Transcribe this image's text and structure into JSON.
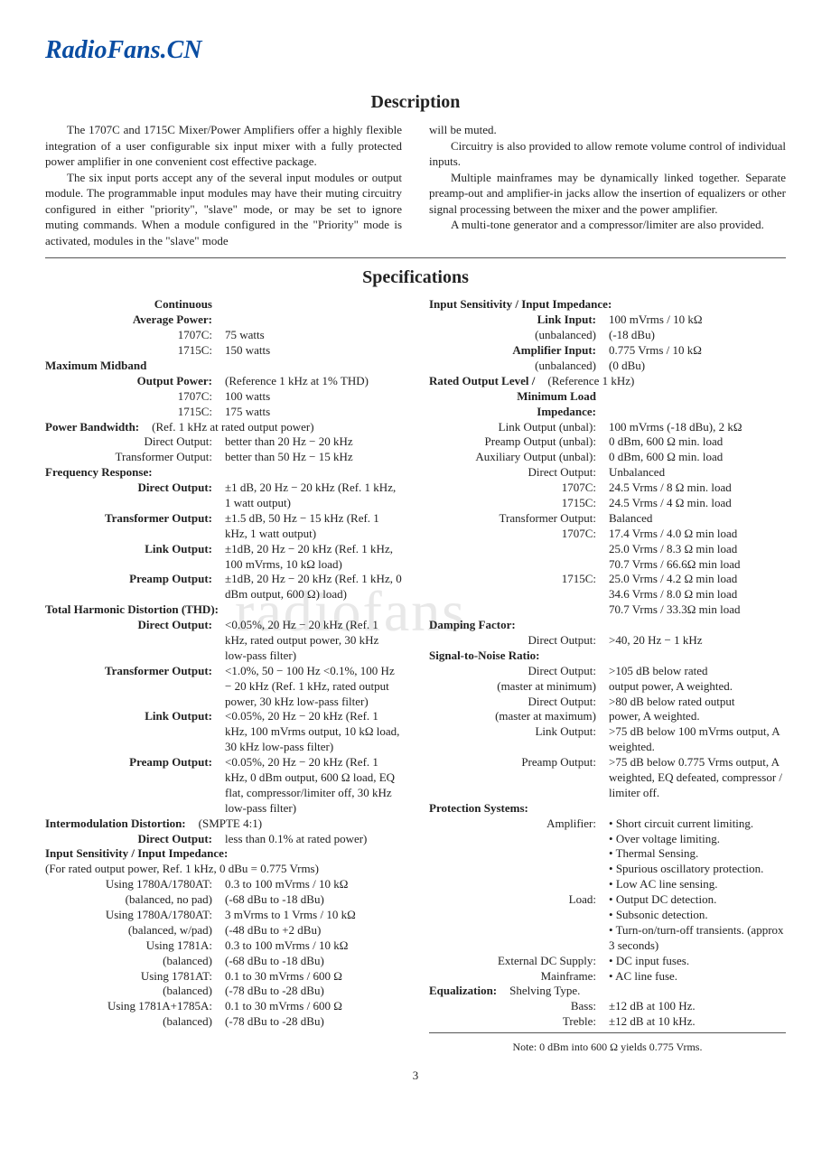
{
  "brand": "RadioFans.CN",
  "watermark": "radiofans",
  "desc_title": "Description",
  "desc_p1": "The 1707C and 1715C Mixer/Power Amplifiers offer a highly flexible integration of a user configurable six input mixer with a fully protected power amplifier in one convenient cost effective package.",
  "desc_p2": "The six input ports accept any of the several input modules or output module. The programmable input modules may have their muting circuitry configured in either \"priority\", \"slave\" mode, or may be set to ignore muting commands. When a module configured in the \"Priority\" mode is activated, modules in the \"slave\" mode",
  "desc_p3": "will be muted.",
  "desc_p4": "Circuitry is also provided to allow remote volume control of individual inputs.",
  "desc_p5": "Multiple mainframes may be dynamically linked together. Separate preamp-out and amplifier-in jacks allow the insertion of equalizers or other signal processing between the mixer and the power amplifier.",
  "desc_p6": "A multi-tone generator and a compressor/limiter are also provided.",
  "spec_title": "Specifications",
  "left": [
    {
      "l": "Continuous",
      "v": "",
      "b": "hdr"
    },
    {
      "l": "Average Power:",
      "v": "",
      "b": "bold"
    },
    {
      "l": "1707C:",
      "v": "75 watts"
    },
    {
      "l": "1715C:",
      "v": "150 watts"
    },
    {
      "l": "Maximum Midband",
      "v": "",
      "b": "hdr",
      "la": "left"
    },
    {
      "l": "Output Power:",
      "v": "(Reference 1 kHz at 1% THD)",
      "b": "bold"
    },
    {
      "l": "1707C:",
      "v": "100 watts"
    },
    {
      "l": "1715C:",
      "v": "175 watts"
    },
    {
      "l": "Power Bandwidth:",
      "v": "(Ref. 1 kHz at rated output power)",
      "b": "hdr",
      "la": "left"
    },
    {
      "l": "Direct Output:",
      "v": "better than 20 Hz − 20 kHz"
    },
    {
      "l": "Transformer Output:",
      "v": "better than 50 Hz − 15 kHz"
    },
    {
      "l": "Frequency Response:",
      "v": "",
      "b": "hdr",
      "la": "left"
    },
    {
      "l": "Direct Output:",
      "v": "±1 dB, 20 Hz − 20 kHz (Ref. 1 kHz, 1 watt output)",
      "b": "bold"
    },
    {
      "l": "Transformer Output:",
      "v": "±1.5 dB, 50 Hz − 15 kHz (Ref. 1 kHz, 1 watt output)",
      "b": "bold"
    },
    {
      "l": "Link Output:",
      "v": "±1dB, 20 Hz − 20 kHz (Ref. 1 kHz, 100 mVrms, 10 kΩ load)",
      "b": "bold"
    },
    {
      "l": "Preamp Output:",
      "v": "±1dB, 20 Hz − 20 kHz (Ref. 1 kHz, 0 dBm output, 600 Ω) load)",
      "b": "bold"
    },
    {
      "l": "Total Harmonic Distortion (THD):",
      "v": "",
      "b": "hdr",
      "la": "left"
    },
    {
      "l": "Direct Output:",
      "v": "<0.05%, 20 Hz − 20 kHz (Ref. 1 kHz, rated output power, 30 kHz low-pass filter)",
      "b": "bold"
    },
    {
      "l": "Transformer Output:",
      "v": "<1.0%, 50 − 100 Hz <0.1%, 100 Hz − 20 kHz (Ref. 1 kHz, rated output power, 30 kHz low-pass filter)",
      "b": "bold"
    },
    {
      "l": "Link Output:",
      "v": "<0.05%, 20 Hz − 20 kHz (Ref. 1 kHz, 100 mVrms output, 10 kΩ load, 30 kHz low-pass filter)",
      "b": "bold"
    },
    {
      "l": "Preamp Output:",
      "v": "<0.05%, 20 Hz − 20 kHz (Ref. 1 kHz, 0 dBm output, 600 Ω load, EQ flat, compressor/limiter off, 30 kHz low-pass filter)",
      "b": "bold"
    },
    {
      "l": "Intermodulation Distortion:",
      "v": "(SMPTE 4:1)",
      "b": "hdr",
      "la": "left"
    },
    {
      "l": "Direct Output:",
      "v": "less than 0.1% at rated power)",
      "b": "bold"
    },
    {
      "l": "Input Sensitivity / Input Impedance:",
      "v": "",
      "b": "hdr",
      "la": "left"
    },
    {
      "l": "(For rated output power, Ref. 1 kHz, 0 dBu = 0.775 Vrms)",
      "v": "",
      "la": "left"
    },
    {
      "l": "Using 1780A/1780AT:",
      "v": "0.3 to 100 mVrms / 10 kΩ"
    },
    {
      "l": "(balanced, no pad)",
      "v": "(-68 dBu to -18 dBu)"
    },
    {
      "l": "Using 1780A/1780AT:",
      "v": "3 mVrms to 1 Vrms / 10 kΩ"
    },
    {
      "l": "(balanced, w/pad)",
      "v": "(-48 dBu to +2 dBu)"
    },
    {
      "l": "Using 1781A:",
      "v": "0.3 to 100 mVrms / 10 kΩ"
    },
    {
      "l": "(balanced)",
      "v": "(-68 dBu to -18 dBu)"
    },
    {
      "l": "Using 1781AT:",
      "v": "0.1 to 30 mVrms / 600 Ω"
    },
    {
      "l": "(balanced)",
      "v": "(-78 dBu to -28 dBu)"
    },
    {
      "l": "Using 1781A+1785A:",
      "v": "0.1 to 30 mVrms / 600 Ω"
    },
    {
      "l": "(balanced)",
      "v": "(-78 dBu to -28 dBu)"
    }
  ],
  "right": [
    {
      "l": "Input Sensitivity / Input Impedance:",
      "v": "",
      "b": "hdr",
      "la": "left"
    },
    {
      "l": "Link Input:",
      "v": "100 mVrms / 10 kΩ",
      "b": "bold"
    },
    {
      "l": "(unbalanced)",
      "v": "(-18 dBu)"
    },
    {
      "l": "Amplifier Input:",
      "v": "0.775 Vrms / 10 kΩ",
      "b": "bold"
    },
    {
      "l": "(unbalanced)",
      "v": "(0 dBu)"
    },
    {
      "l": "Rated Output Level /",
      "v": "(Reference 1 kHz)",
      "b": "hdr",
      "la": "left"
    },
    {
      "l": "Minimum Load",
      "v": "",
      "b": "bold"
    },
    {
      "l": "Impedance:",
      "v": "",
      "b": "bold"
    },
    {
      "l": "Link Output (unbal):",
      "v": "100 mVrms (-18 dBu), 2 kΩ"
    },
    {
      "l": "Preamp Output (unbal):",
      "v": "0 dBm, 600 Ω min. load"
    },
    {
      "l": "Auxiliary Output (unbal):",
      "v": "0 dBm, 600 Ω min. load"
    },
    {
      "l": "Direct Output:",
      "v": "Unbalanced"
    },
    {
      "l": "1707C:",
      "v": "24.5 Vrms / 8 Ω min. load"
    },
    {
      "l": "1715C:",
      "v": "24.5 Vrms / 4 Ω min. load"
    },
    {
      "l": "Transformer Output:",
      "v": "Balanced"
    },
    {
      "l": "1707C:",
      "v": "17.4 Vrms / 4.0 Ω min load"
    },
    {
      "l": "",
      "v": "25.0 Vrms / 8.3 Ω min load"
    },
    {
      "l": "",
      "v": "70.7 Vrms / 66.6Ω min load"
    },
    {
      "l": "1715C:",
      "v": "25.0 Vrms / 4.2 Ω min load"
    },
    {
      "l": "",
      "v": "34.6 Vrms / 8.0 Ω min load"
    },
    {
      "l": "",
      "v": "70.7 Vrms / 33.3Ω min load"
    },
    {
      "l": "Damping Factor:",
      "v": "",
      "b": "hdr",
      "la": "left"
    },
    {
      "l": "Direct Output:",
      "v": ">40, 20 Hz − 1 kHz"
    },
    {
      "l": "Signal-to-Noise Ratio:",
      "v": "",
      "b": "hdr",
      "la": "left"
    },
    {
      "l": "Direct Output:",
      "v": ">105 dB below rated"
    },
    {
      "l": "(master at minimum)",
      "v": "output power, A weighted."
    },
    {
      "l": "Direct Output:",
      "v": ">80 dB below rated output"
    },
    {
      "l": "(master at maximum)",
      "v": "power, A weighted."
    },
    {
      "l": "Link Output:",
      "v": ">75 dB below 100 mVrms output, A weighted."
    },
    {
      "l": "Preamp Output:",
      "v": ">75 dB below 0.775 Vrms output, A weighted, EQ defeated, compressor / limiter off."
    },
    {
      "l": "Protection Systems:",
      "v": "",
      "b": "hdr",
      "la": "left"
    },
    {
      "l": "Amplifier:",
      "v": "",
      "bullets": [
        "Short circuit current limiting.",
        "Over voltage limiting.",
        "Thermal Sensing.",
        "Spurious oscillatory protection.",
        "Low AC line sensing."
      ]
    },
    {
      "l": "Load:",
      "v": "",
      "bullets": [
        "Output DC detection.",
        "Subsonic detection.",
        "Turn-on/turn-off transients. (approx 3 seconds)"
      ]
    },
    {
      "l": "External DC Supply:",
      "v": "",
      "bullets": [
        "DC input fuses."
      ]
    },
    {
      "l": "Mainframe:",
      "v": "",
      "bullets": [
        "AC line fuse."
      ]
    },
    {
      "l": "Equalization:",
      "v": "Shelving Type.",
      "b": "hdr",
      "la": "left"
    },
    {
      "l": "Bass:",
      "v": "±12 dB at 100 Hz."
    },
    {
      "l": "Treble:",
      "v": "±12 dB at 10 kHz."
    }
  ],
  "note": "Note: 0 dBm into 600 Ω yields 0.775 Vrms.",
  "pageno": "3"
}
